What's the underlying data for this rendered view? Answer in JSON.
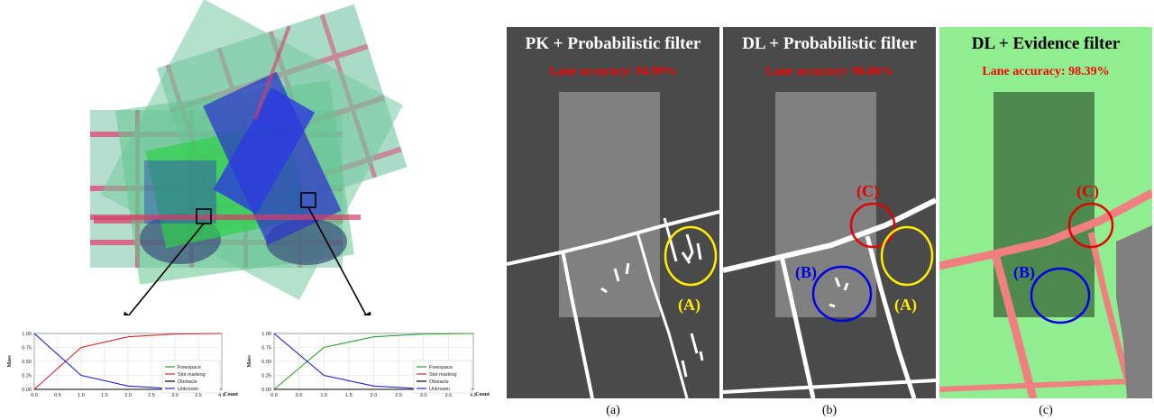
{
  "panels": [
    {
      "title": "PK + Probabilistic filter",
      "accuracy": "Lane accuracy: 94.99%",
      "caption": "(a)",
      "markers": [
        "(A)"
      ]
    },
    {
      "title": "DL + Probabilistic filter",
      "accuracy": "Lane accuracy: 96.06%",
      "caption": "(b)",
      "markers": [
        "(C)",
        "(B)",
        "(A)"
      ]
    },
    {
      "title": "DL + Evidence filter",
      "accuracy": "Lane accuracy: 98.39%",
      "caption": "(c)",
      "markers": [
        "(C)",
        "(B)"
      ]
    }
  ],
  "colors": {
    "freespace": "#2ca02c",
    "slot_marking": "#d62728",
    "obstacle": "#000000",
    "unknown": "#1f1fd6",
    "marker_yellow": "#ffee00",
    "marker_red": "#e60000",
    "marker_blue": "#0000e6"
  },
  "chart_data": [
    {
      "type": "line",
      "ylabel": "Mass",
      "xlabel": "Count",
      "xlim": [
        0,
        4
      ],
      "ylim": [
        0,
        1
      ],
      "xticks": [
        "0.0",
        "0.5",
        "1.0",
        "1.5",
        "2.0",
        "2.5",
        "3.0",
        "3.5",
        "4.0"
      ],
      "yticks": [
        "0.00",
        "0.25",
        "0.50",
        "0.75",
        "1.00"
      ],
      "legend": "right",
      "grid": true,
      "x": [
        0,
        1,
        2,
        3,
        4
      ],
      "series": [
        {
          "name": "Freespace",
          "values": [
            0,
            0,
            0,
            0,
            0
          ]
        },
        {
          "name": "Slot marking",
          "values": [
            0,
            0.75,
            0.94,
            0.99,
            1.0
          ]
        },
        {
          "name": "Obstacle",
          "values": [
            0,
            0,
            0,
            0,
            0
          ]
        },
        {
          "name": "Unknown",
          "values": [
            1.0,
            0.25,
            0.06,
            0.01,
            0.0
          ]
        }
      ]
    },
    {
      "type": "line",
      "ylabel": "Mass",
      "xlabel": "Count",
      "xlim": [
        0,
        4
      ],
      "ylim": [
        0,
        1
      ],
      "xticks": [
        "0.0",
        "0.5",
        "1.0",
        "1.5",
        "2.0",
        "2.5",
        "3.0",
        "3.5",
        "4.0"
      ],
      "yticks": [
        "0.00",
        "0.25",
        "0.50",
        "0.75",
        "1.00"
      ],
      "legend": "right",
      "grid": true,
      "x": [
        0,
        1,
        2,
        3,
        4
      ],
      "series": [
        {
          "name": "Freespace",
          "values": [
            0,
            0.75,
            0.94,
            0.99,
            1.0
          ]
        },
        {
          "name": "Slot marking",
          "values": [
            0,
            0,
            0,
            0,
            0
          ]
        },
        {
          "name": "Obstacle",
          "values": [
            0,
            0,
            0,
            0,
            0
          ]
        },
        {
          "name": "Unknown",
          "values": [
            1.0,
            0.25,
            0.06,
            0.01,
            0.0
          ]
        }
      ]
    }
  ]
}
